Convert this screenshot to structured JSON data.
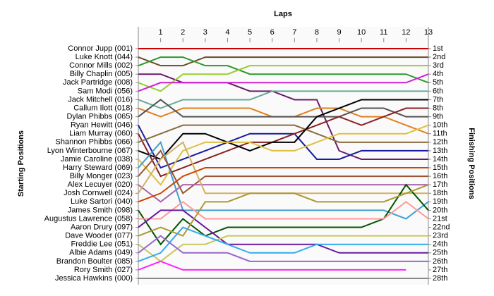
{
  "chart_data": {
    "type": "line",
    "title": "Laps",
    "y_label_left": "Starting Positions",
    "y_label_right": "Finishing Positions",
    "x": [
      0,
      1,
      2,
      3,
      4,
      5,
      6,
      7,
      8,
      9,
      10,
      11,
      12,
      13
    ],
    "xlim": [
      0,
      13
    ],
    "xticks": [
      1,
      2,
      3,
      4,
      5,
      6,
      7,
      8,
      9,
      10,
      11,
      12,
      13
    ],
    "ylim": [
      28,
      1
    ],
    "yticks": [
      1,
      2,
      3,
      4,
      5,
      6,
      7,
      8,
      9,
      10,
      11,
      12,
      13,
      14,
      15,
      16,
      17,
      18,
      19,
      20,
      21,
      22,
      23,
      24,
      25,
      26,
      27,
      28
    ],
    "finish_labels": [
      "1st",
      "2nd",
      "3rd",
      "4th",
      "5th",
      "6th",
      "7th",
      "8th",
      "9th",
      "10th",
      "11th",
      "12th",
      "13th",
      "14th",
      "15th",
      "16th",
      "17th",
      "18th",
      "19th",
      "20th",
      "21st",
      "22nd",
      "23rd",
      "24th",
      "25th",
      "26th",
      "27th",
      "28th"
    ],
    "series": [
      {
        "name": "Connor Jupp (001)",
        "color": "#cc0000",
        "values": [
          1,
          1,
          1,
          1,
          1,
          1,
          1,
          1,
          1,
          1,
          1,
          1,
          1,
          1
        ]
      },
      {
        "name": "Luke Knott (044)",
        "color": "#6b4a2a",
        "values": [
          2,
          3,
          3,
          2,
          2,
          2,
          2,
          2,
          2,
          2,
          2,
          2,
          2,
          2
        ]
      },
      {
        "name": "Connor Mills (002)",
        "color": "#2a9a2a",
        "values": [
          3,
          2,
          2,
          3,
          3,
          4,
          4,
          4,
          4,
          4,
          4,
          4,
          4,
          5
        ]
      },
      {
        "name": "Billy Chaplin (005)",
        "color": "#6a1a6a",
        "values": [
          4,
          4,
          5,
          5,
          5,
          6,
          6,
          7,
          7,
          13,
          14,
          14,
          14,
          14
        ]
      },
      {
        "name": "Jack Partridge (008)",
        "color": "#9acd32",
        "values": [
          5,
          6,
          4,
          4,
          4,
          3,
          3,
          3,
          3,
          3,
          3,
          3,
          3,
          3
        ]
      },
      {
        "name": "Sam Modi (056)",
        "color": "#d020d0",
        "values": [
          6,
          5,
          5,
          5,
          5,
          5,
          5,
          5,
          5,
          5,
          5,
          5,
          5,
          4
        ]
      },
      {
        "name": "Jack Mitchell (016)",
        "color": "#66aa99",
        "values": [
          7,
          8,
          7,
          7,
          7,
          7,
          6,
          6,
          6,
          6,
          6,
          6,
          6,
          6
        ]
      },
      {
        "name": "Callum Ilott (018)",
        "color": "#e08020",
        "values": [
          8,
          9,
          8,
          8,
          8,
          8,
          9,
          9,
          8,
          8,
          9,
          9,
          10,
          11
        ]
      },
      {
        "name": "Dylan Phibbs (065)",
        "color": "#555555",
        "values": [
          9,
          7,
          9,
          9,
          9,
          9,
          9,
          9,
          9,
          9,
          8,
          8,
          9,
          9
        ]
      },
      {
        "name": "Ryan Hewitt (046)",
        "color": "#1a1aa0",
        "values": [
          10,
          15,
          14,
          13,
          12,
          11,
          11,
          11,
          14,
          14,
          13,
          13,
          13,
          13
        ]
      },
      {
        "name": "Liam Murray (060)",
        "color": "#882222",
        "values": [
          11,
          16,
          15,
          14,
          13,
          12,
          12,
          11,
          10,
          9,
          10,
          9,
          8,
          8
        ]
      },
      {
        "name": "Shannon Phibbs (066)",
        "color": "#8b6b3b",
        "values": [
          12,
          11,
          10,
          10,
          10,
          10,
          10,
          10,
          11,
          12,
          12,
          12,
          12,
          12
        ]
      },
      {
        "name": "Lyon Winterbourne (067)",
        "color": "#000000",
        "values": [
          13,
          14,
          11,
          11,
          12,
          13,
          12,
          12,
          9,
          8,
          7,
          7,
          7,
          7
        ]
      },
      {
        "name": "Jamie Caroline (038)",
        "color": "#e0c040",
        "values": [
          14,
          17,
          13,
          12,
          12,
          12,
          13,
          13,
          12,
          11,
          11,
          11,
          11,
          10
        ]
      },
      {
        "name": "Harry Steward (069)",
        "color": "#40a0d0",
        "values": [
          15,
          12,
          20,
          20,
          20,
          20,
          20,
          20,
          20,
          20,
          20,
          20,
          21,
          19
        ]
      },
      {
        "name": "Billy Monger (023)",
        "color": "#995533",
        "values": [
          16,
          13,
          18,
          16,
          16,
          16,
          16,
          16,
          16,
          16,
          16,
          16,
          16,
          16
        ]
      },
      {
        "name": "Alex Lecuyer (020)",
        "color": "#aa66aa",
        "values": [
          17,
          19,
          17,
          17,
          17,
          17,
          17,
          17,
          17,
          17,
          17,
          17,
          17,
          17
        ]
      },
      {
        "name": "Josh Cornwell (024)",
        "color": "#d4b060",
        "values": [
          18,
          14,
          12,
          18,
          18,
          18,
          18,
          18,
          18,
          18,
          18,
          18,
          18,
          18
        ]
      },
      {
        "name": "Luke Sartori (040)",
        "color": "#cc4400",
        "values": [
          19,
          18,
          16,
          15,
          15,
          15,
          15,
          15,
          15,
          15,
          15,
          15,
          15,
          15
        ]
      },
      {
        "name": "James Smith (098)",
        "color": "#005500",
        "values": [
          20,
          24,
          21,
          23,
          22,
          22,
          22,
          22,
          22,
          22,
          22,
          21,
          17,
          20
        ]
      },
      {
        "name": "Augustus Lawrence (058)",
        "color": "#ff9999",
        "values": [
          21,
          21,
          19,
          21,
          21,
          21,
          21,
          21,
          21,
          21,
          21,
          21,
          19,
          21
        ]
      },
      {
        "name": "Aaron Drury (097)",
        "color": "#6a1aa0",
        "values": [
          22,
          20,
          20,
          22,
          24,
          24,
          24,
          24,
          24,
          25,
          25,
          25,
          25,
          25
        ]
      },
      {
        "name": "Dave Wooder (077)",
        "color": "#aa9933",
        "values": [
          23,
          22,
          23,
          19,
          19,
          18,
          18,
          18,
          19,
          19,
          19,
          19,
          18,
          17
        ]
      },
      {
        "name": "Freddie Lee (051)",
        "color": "#c8c85a",
        "values": [
          24,
          26,
          24,
          24,
          23,
          23,
          23,
          23,
          23,
          23,
          23,
          23,
          23,
          23
        ]
      },
      {
        "name": "Albie Adams (049)",
        "color": "#9966cc",
        "values": [
          25,
          23,
          25,
          25,
          25,
          26,
          26,
          26,
          26,
          26,
          26,
          26,
          26,
          26
        ]
      },
      {
        "name": "Brandon Boulter (085)",
        "color": "#33aaee",
        "values": [
          26,
          25,
          22,
          23,
          24,
          25,
          25,
          25,
          24,
          24,
          24,
          24,
          24,
          24
        ]
      },
      {
        "name": "Rory Smith (027)",
        "color": "#ff22ff",
        "values": [
          27,
          26,
          27,
          27,
          27,
          27,
          27,
          27,
          27,
          27,
          27,
          27,
          27,
          null
        ]
      },
      {
        "name": "Jessica Hawkins (000)",
        "color": "#888888",
        "values": [
          28,
          28,
          28,
          28,
          28,
          28,
          28,
          28,
          28,
          28,
          28,
          28,
          28,
          28
        ]
      }
    ]
  }
}
